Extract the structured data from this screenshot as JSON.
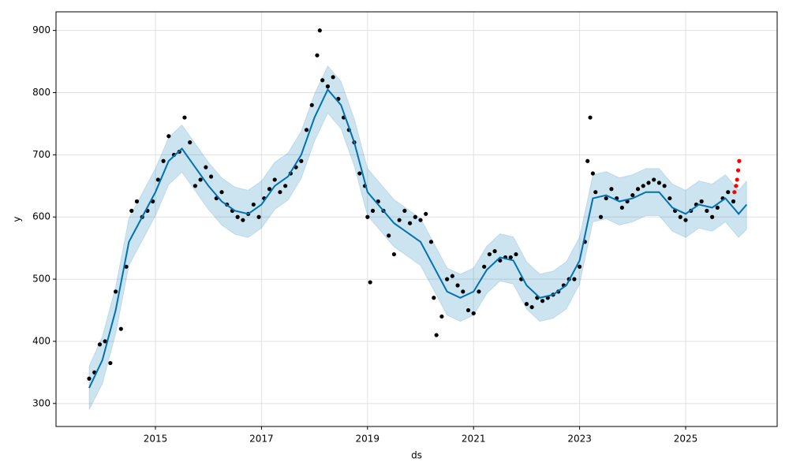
{
  "chart_data": {
    "type": "forecast",
    "xlabel": "ds",
    "ylabel": "y",
    "xlim": [
      2013.125,
      2026.726
    ],
    "ylim": [
      263,
      930
    ],
    "xticks": [
      2015,
      2017,
      2019,
      2021,
      2023,
      2025
    ],
    "yticks": [
      300,
      400,
      500,
      600,
      700,
      800,
      900
    ],
    "grid": true,
    "observed": {
      "color": "#000000",
      "x": [
        2013.75,
        2013.85,
        2013.95,
        2014.05,
        2014.15,
        2014.25,
        2014.35,
        2014.45,
        2014.55,
        2014.65,
        2014.75,
        2014.85,
        2014.95,
        2015.05,
        2015.15,
        2015.25,
        2015.35,
        2015.45,
        2015.55,
        2015.65,
        2015.75,
        2015.85,
        2015.95,
        2016.05,
        2016.15,
        2016.25,
        2016.35,
        2016.45,
        2016.55,
        2016.65,
        2016.75,
        2016.85,
        2016.95,
        2017.05,
        2017.15,
        2017.25,
        2017.35,
        2017.45,
        2017.55,
        2017.65,
        2017.75,
        2017.85,
        2017.95,
        2018.05,
        2018.1,
        2018.15,
        2018.25,
        2018.35,
        2018.45,
        2018.55,
        2018.65,
        2018.75,
        2018.85,
        2018.95,
        2019.0,
        2019.05,
        2019.1,
        2019.2,
        2019.3,
        2019.4,
        2019.5,
        2019.6,
        2019.7,
        2019.8,
        2019.9,
        2020.0,
        2020.1,
        2020.2,
        2020.25,
        2020.3,
        2020.4,
        2020.5,
        2020.6,
        2020.7,
        2020.8,
        2020.9,
        2021.0,
        2021.1,
        2021.2,
        2021.3,
        2021.4,
        2021.5,
        2021.6,
        2021.7,
        2021.8,
        2021.9,
        2022.0,
        2022.1,
        2022.2,
        2022.3,
        2022.4,
        2022.5,
        2022.6,
        2022.7,
        2022.8,
        2022.9,
        2023.0,
        2023.1,
        2023.15,
        2023.2,
        2023.25,
        2023.3,
        2023.4,
        2023.5,
        2023.6,
        2023.7,
        2023.8,
        2023.9,
        2024.0,
        2024.1,
        2024.2,
        2024.3,
        2024.4,
        2024.5,
        2024.6,
        2024.7,
        2024.8,
        2024.9,
        2025.0,
        2025.1,
        2025.2,
        2025.3,
        2025.4,
        2025.5,
        2025.6,
        2025.7,
        2025.8,
        2025.9
      ],
      "values": [
        340,
        350,
        395,
        400,
        365,
        480,
        420,
        520,
        610,
        625,
        600,
        610,
        625,
        660,
        690,
        730,
        700,
        705,
        760,
        720,
        650,
        660,
        680,
        665,
        630,
        640,
        620,
        610,
        600,
        595,
        605,
        620,
        600,
        630,
        645,
        660,
        640,
        650,
        670,
        680,
        690,
        740,
        780,
        860,
        900,
        820,
        810,
        825,
        790,
        760,
        740,
        720,
        670,
        650,
        600,
        495,
        610,
        625,
        610,
        570,
        540,
        595,
        610,
        590,
        600,
        595,
        605,
        560,
        470,
        410,
        440,
        500,
        505,
        490,
        480,
        450,
        445,
        480,
        520,
        540,
        545,
        530,
        535,
        535,
        540,
        500,
        460,
        455,
        470,
        465,
        470,
        475,
        480,
        490,
        500,
        500,
        520,
        560,
        690,
        760,
        670,
        640,
        600,
        630,
        645,
        630,
        615,
        625,
        635,
        645,
        650,
        655,
        660,
        655,
        650,
        630,
        610,
        600,
        595,
        610,
        620,
        625,
        610,
        600,
        615,
        630,
        640,
        625
      ]
    },
    "recent": {
      "color": "#ff0000",
      "x": [
        2025.92,
        2025.95,
        2025.97,
        2025.99,
        2026.01
      ],
      "values": [
        640,
        650,
        660,
        675,
        690
      ]
    },
    "forecast": {
      "color": "#0072b2",
      "x": [
        2013.75,
        2014.0,
        2014.25,
        2014.5,
        2014.75,
        2015.0,
        2015.25,
        2015.5,
        2015.75,
        2016.0,
        2016.25,
        2016.5,
        2016.75,
        2017.0,
        2017.25,
        2017.5,
        2017.75,
        2018.0,
        2018.25,
        2018.5,
        2018.75,
        2019.0,
        2019.25,
        2019.5,
        2019.75,
        2020.0,
        2020.25,
        2020.5,
        2020.75,
        2021.0,
        2021.25,
        2021.5,
        2021.75,
        2022.0,
        2022.25,
        2022.5,
        2022.75,
        2023.0,
        2023.25,
        2023.5,
        2023.75,
        2024.0,
        2024.25,
        2024.5,
        2024.75,
        2025.0,
        2025.25,
        2025.5,
        2025.75,
        2026.0,
        2026.15
      ],
      "values": [
        325,
        370,
        450,
        560,
        600,
        640,
        690,
        710,
        680,
        650,
        625,
        610,
        605,
        620,
        650,
        665,
        700,
        760,
        805,
        780,
        720,
        640,
        615,
        590,
        575,
        560,
        520,
        480,
        470,
        480,
        515,
        535,
        530,
        490,
        470,
        475,
        490,
        530,
        630,
        635,
        625,
        630,
        640,
        640,
        615,
        605,
        620,
        615,
        630,
        605,
        620
      ],
      "lower": [
        290,
        332,
        412,
        522,
        562,
        602,
        652,
        672,
        642,
        612,
        587,
        572,
        567,
        582,
        612,
        627,
        662,
        722,
        767,
        742,
        682,
        602,
        577,
        552,
        537,
        522,
        482,
        442,
        432,
        442,
        477,
        497,
        492,
        452,
        432,
        437,
        452,
        492,
        592,
        597,
        587,
        592,
        602,
        602,
        577,
        567,
        582,
        577,
        592,
        567,
        580
      ],
      "upper": [
        360,
        408,
        488,
        598,
        638,
        678,
        728,
        748,
        718,
        688,
        663,
        648,
        643,
        658,
        688,
        703,
        738,
        798,
        843,
        818,
        758,
        678,
        653,
        628,
        613,
        598,
        558,
        518,
        508,
        518,
        553,
        573,
        568,
        528,
        508,
        513,
        528,
        568,
        668,
        673,
        663,
        668,
        678,
        678,
        653,
        643,
        658,
        653,
        668,
        643,
        658
      ]
    }
  }
}
